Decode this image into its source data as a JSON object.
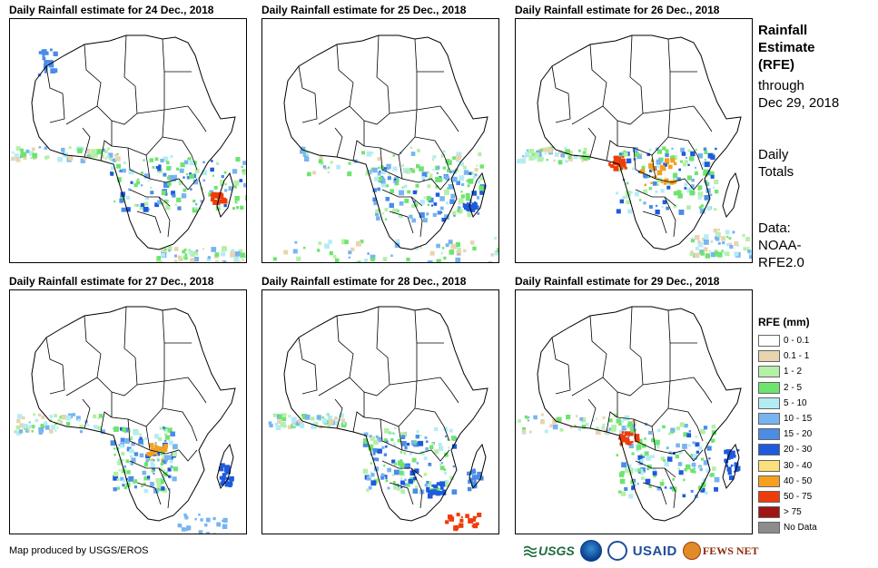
{
  "panels": [
    {
      "title": "Daily Rainfall estimate for 24 Dec., 2018"
    },
    {
      "title": "Daily Rainfall estimate for 25 Dec., 2018"
    },
    {
      "title": "Daily Rainfall estimate for 26 Dec., 2018"
    },
    {
      "title": "Daily Rainfall estimate for 27 Dec., 2018"
    },
    {
      "title": "Daily Rainfall estimate for 28 Dec., 2018"
    },
    {
      "title": "Daily Rainfall estimate for 29 Dec., 2018"
    }
  ],
  "side": {
    "heading_line1": "Rainfall",
    "heading_line2": "Estimate",
    "heading_line3": "(RFE)",
    "through": "through",
    "date": "Dec 29, 2018",
    "totals_line1": "Daily",
    "totals_line2": "Totals",
    "data_line1": "Data:",
    "data_line2": "NOAA-",
    "data_line3": "RFE2.0"
  },
  "legend": {
    "title": "RFE (mm)",
    "items": [
      {
        "label": "0 - 0.1",
        "color": "#ffffff"
      },
      {
        "label": "0.1 - 1",
        "color": "#e8d4b0"
      },
      {
        "label": "1 - 2",
        "color": "#b4f0a6"
      },
      {
        "label": "2 - 5",
        "color": "#6ee46e"
      },
      {
        "label": "5 - 10",
        "color": "#b4ecf4"
      },
      {
        "label": "10 - 15",
        "color": "#78b4f0"
      },
      {
        "label": "15 - 20",
        "color": "#4a8ce6"
      },
      {
        "label": "20 - 30",
        "color": "#1e5adc"
      },
      {
        "label": "30 - 40",
        "color": "#fae07a"
      },
      {
        "label": "40 - 50",
        "color": "#f5a01e"
      },
      {
        "label": "50 - 75",
        "color": "#ee3c0a"
      },
      {
        "label": "> 75",
        "color": "#a01414"
      },
      {
        "label": "No Data",
        "color": "#8c8c8c"
      }
    ]
  },
  "footer": {
    "credit": "Map produced by USGS/EROS"
  },
  "logos": {
    "usgs": "USGS",
    "usaid": "USAID",
    "fews": "FEWS NET"
  }
}
